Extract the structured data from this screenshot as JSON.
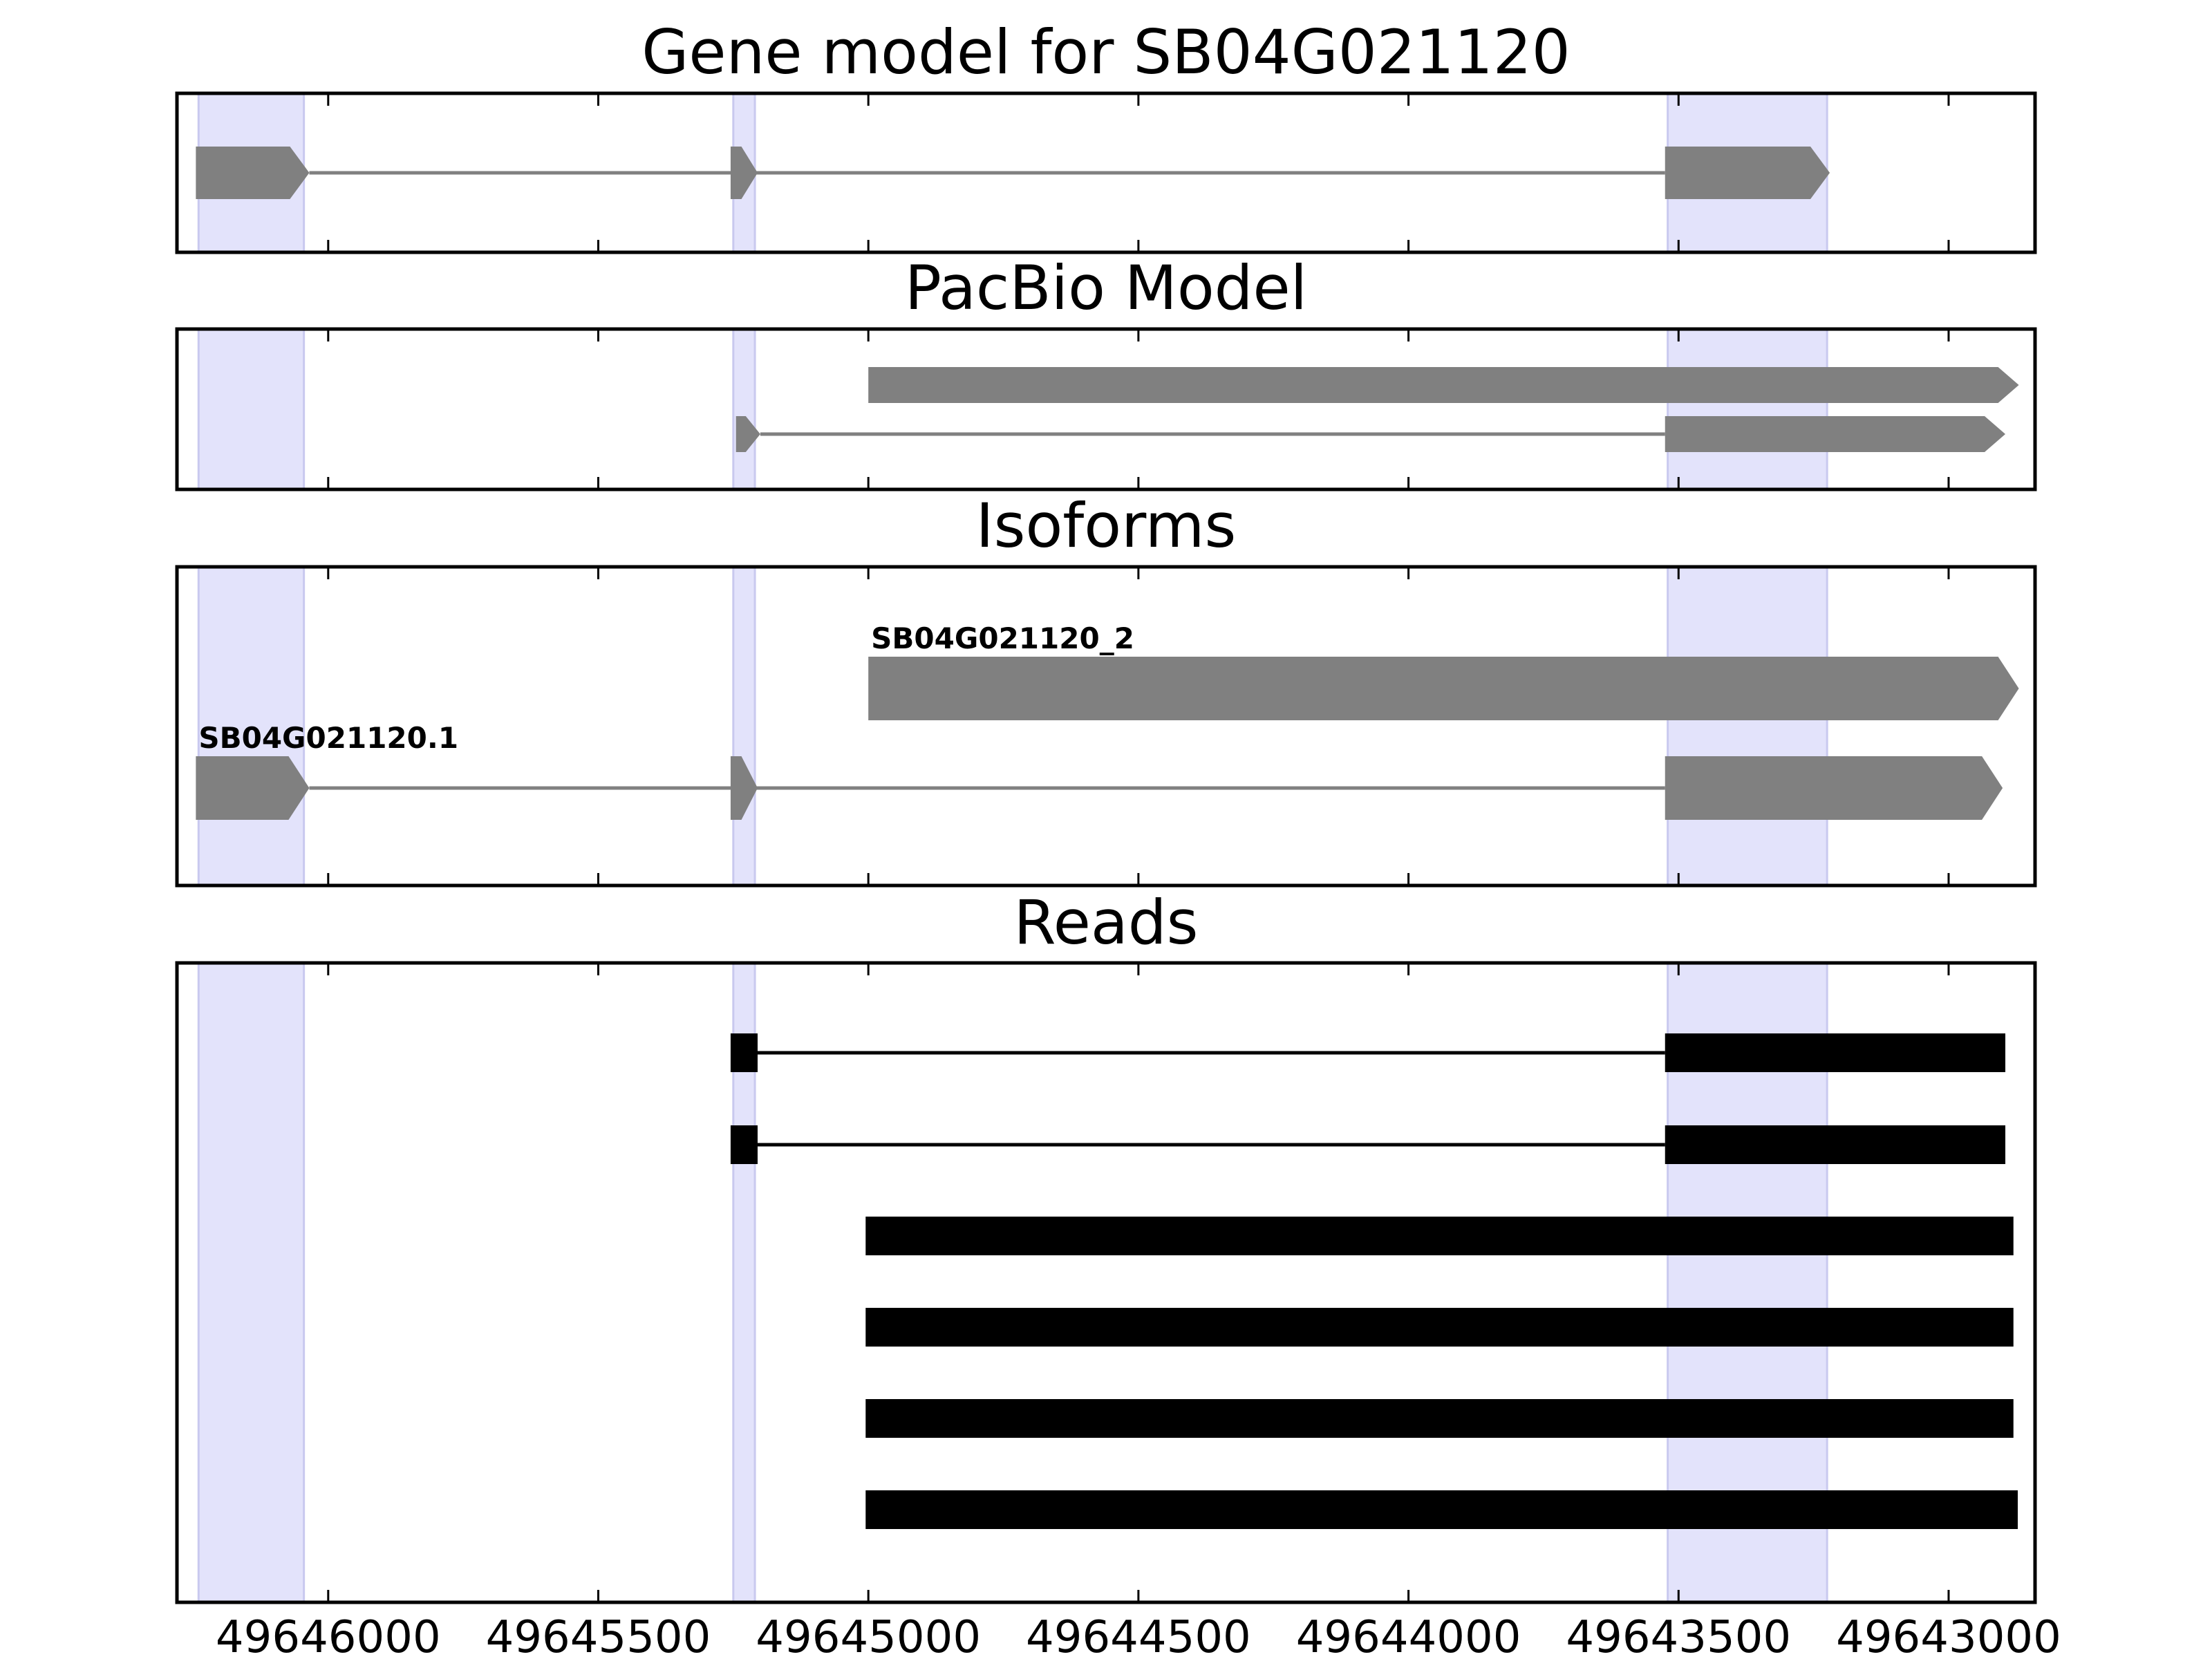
{
  "colors": {
    "background": "#ffffff",
    "exon_highlight": "#e3e3fb",
    "exon_highlight_edge": "#c9c9ef",
    "model_feature": "#808080",
    "read_feature": "#000000",
    "axes": "#000000"
  },
  "x_axis": {
    "reversed": true,
    "range": [
      49646280,
      49642840
    ],
    "ticks": [
      {
        "value": 49646000,
        "label": "49646000"
      },
      {
        "value": 49645500,
        "label": "49645500"
      },
      {
        "value": 49645000,
        "label": "49645000"
      },
      {
        "value": 49644500,
        "label": "49644500"
      },
      {
        "value": 49644000,
        "label": "49644000"
      },
      {
        "value": 49643500,
        "label": "49643500"
      },
      {
        "value": 49643000,
        "label": "49643000"
      }
    ]
  },
  "exon_highlights": [
    {
      "start": 49646240,
      "end": 49646045
    },
    {
      "start": 49645250,
      "end": 49645210
    },
    {
      "start": 49643520,
      "end": 49643225
    }
  ],
  "chart_data": [
    {
      "type": "gene-track",
      "title": "Gene model for SB04G021120",
      "transcripts": [
        {
          "label": "",
          "exons": [
            [
              49646245,
              49646035
            ],
            [
              49645255,
              49645205
            ],
            [
              49643525,
              49643220
            ]
          ]
        }
      ]
    },
    {
      "type": "gene-track",
      "title": "PacBio Model",
      "transcripts": [
        {
          "label": "",
          "exons": [
            [
              49645000,
              49642870
            ]
          ]
        },
        {
          "label": "",
          "exons": [
            [
              49645245,
              49645200
            ],
            [
              49643525,
              49642895
            ]
          ]
        }
      ]
    },
    {
      "type": "gene-track",
      "title": "Isoforms",
      "transcripts": [
        {
          "label": "SB04G021120_2",
          "exons": [
            [
              49645000,
              49642870
            ]
          ]
        },
        {
          "label": "SB04G021120.1",
          "exons": [
            [
              49646245,
              49646035
            ],
            [
              49645255,
              49645205
            ],
            [
              49643525,
              49642900
            ]
          ]
        }
      ]
    },
    {
      "type": "read-track",
      "title": "Reads",
      "reads": [
        {
          "blocks": [
            [
              49645255,
              49645205
            ],
            [
              49643525,
              49642895
            ]
          ]
        },
        {
          "blocks": [
            [
              49645255,
              49645205
            ],
            [
              49643525,
              49642895
            ]
          ]
        },
        {
          "blocks": [
            [
              49645005,
              49642880
            ]
          ]
        },
        {
          "blocks": [
            [
              49645005,
              49642880
            ]
          ]
        },
        {
          "blocks": [
            [
              49645005,
              49642880
            ]
          ]
        },
        {
          "blocks": [
            [
              49645005,
              49642872
            ]
          ]
        }
      ]
    }
  ]
}
